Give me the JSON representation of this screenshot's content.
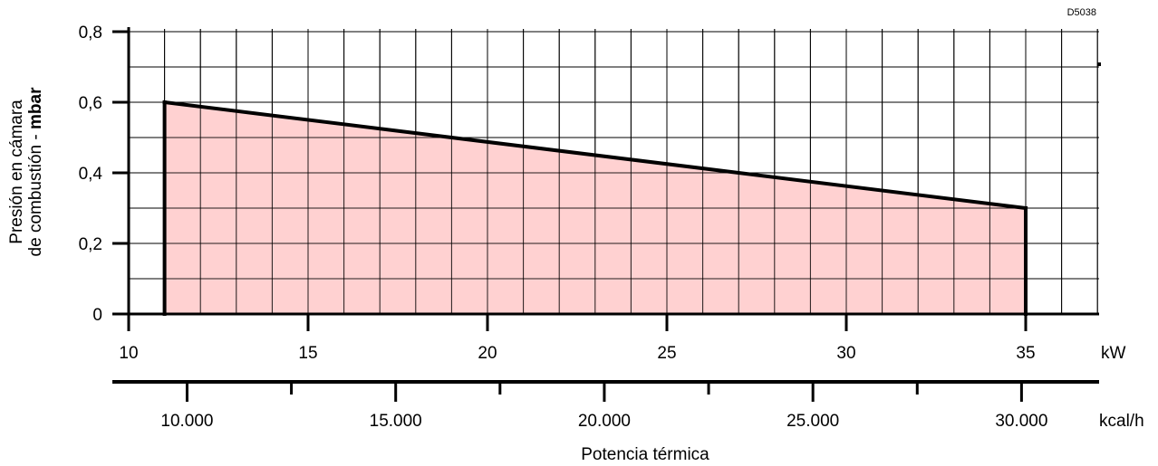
{
  "chart_data": {
    "type": "area",
    "drawing_code": "D5038",
    "y_axis": {
      "title_line1": "Presión en cámara",
      "title_line2_prefix": "de combustión - ",
      "title_line2_unit": "mbar",
      "range": [
        0,
        0.8
      ],
      "ticks": [
        0,
        0.2,
        0.4,
        0.6,
        0.8
      ],
      "tick_labels": [
        "0",
        "0,2",
        "0,4",
        "0,6",
        "0,8"
      ]
    },
    "x_axis_kw": {
      "unit": "kW",
      "range": [
        10,
        37
      ],
      "ticks": [
        10,
        15,
        20,
        25,
        30,
        35
      ],
      "tick_labels": [
        "10",
        "15",
        "20",
        "25",
        "30",
        "35"
      ]
    },
    "x_axis_kcal": {
      "unit": "kcal/h",
      "ticks": [
        10000,
        15000,
        20000,
        25000,
        30000
      ],
      "tick_labels": [
        "10.000",
        "15.000",
        "20.000",
        "25.000",
        "30.000"
      ],
      "minor_ticks": [
        12500,
        17500,
        22500,
        27500
      ]
    },
    "x_title": "Potencia térmica",
    "grid": true,
    "fill_color": "#ffcccc",
    "line_color": "#000000",
    "series": [
      {
        "x": [
          11,
          35
        ],
        "y": [
          0.6,
          0.3
        ]
      }
    ]
  }
}
